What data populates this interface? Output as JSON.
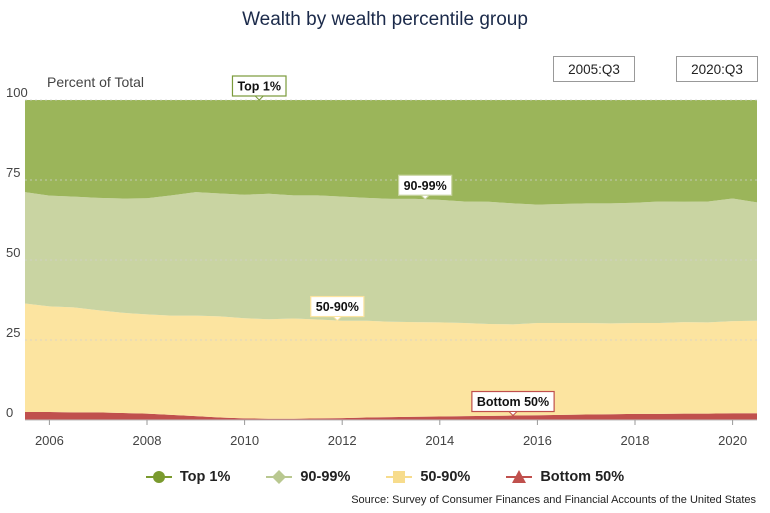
{
  "chart_data": {
    "type": "area",
    "stacked": true,
    "title": "Wealth by wealth percentile group",
    "ylabel": "Percent of Total",
    "xlabel": "",
    "ylim": [
      0,
      100
    ],
    "xlim": [
      2005.5,
      2020.5
    ],
    "yticks": [
      0,
      25,
      50,
      75,
      100
    ],
    "xticks": [
      2006,
      2008,
      2010,
      2012,
      2014,
      2016,
      2018,
      2020
    ],
    "grid": "horizontal",
    "legend_position": "bottom",
    "range_selector": {
      "start": "2005:Q3",
      "end": "2020:Q3"
    },
    "x": [
      2005.5,
      2006.0,
      2006.5,
      2007.0,
      2007.5,
      2008.0,
      2008.5,
      2009.0,
      2009.5,
      2010.0,
      2010.5,
      2011.0,
      2011.5,
      2012.0,
      2012.5,
      2013.0,
      2013.5,
      2014.0,
      2014.5,
      2015.0,
      2015.5,
      2016.0,
      2016.5,
      2017.0,
      2017.5,
      2018.0,
      2018.5,
      2019.0,
      2019.5,
      2020.0,
      2020.5
    ],
    "series": [
      {
        "name": "Bottom 50%",
        "color": "#c0504d",
        "marker": "triangle",
        "values": [
          2.5,
          2.5,
          2.4,
          2.4,
          2.2,
          2.0,
          1.6,
          1.2,
          0.8,
          0.5,
          0.4,
          0.4,
          0.5,
          0.6,
          0.8,
          0.9,
          1.0,
          1.1,
          1.2,
          1.3,
          1.4,
          1.5,
          1.6,
          1.7,
          1.8,
          1.9,
          1.9,
          2.0,
          2.0,
          2.1,
          2.1
        ]
      },
      {
        "name": "50-90%",
        "color": "#fce4a0",
        "marker": "square",
        "values": [
          33.9,
          33.0,
          32.8,
          31.9,
          31.3,
          31.0,
          31.0,
          31.4,
          31.6,
          31.3,
          31.1,
          31.3,
          30.9,
          30.4,
          30.2,
          29.8,
          29.6,
          29.4,
          29.1,
          28.7,
          28.5,
          28.8,
          28.7,
          28.6,
          28.4,
          28.4,
          28.4,
          28.6,
          28.5,
          28.8,
          28.9
        ]
      },
      {
        "name": "90-99%",
        "color": "#c9d4a2",
        "marker": "diamond",
        "values": [
          34.8,
          34.6,
          34.6,
          35.1,
          35.7,
          36.3,
          37.6,
          38.6,
          38.4,
          38.6,
          39.2,
          38.5,
          38.8,
          38.8,
          38.4,
          38.4,
          38.5,
          38.3,
          38.0,
          38.2,
          37.8,
          37.0,
          37.2,
          37.4,
          37.5,
          37.6,
          38.0,
          37.6,
          37.8,
          38.3,
          37.0
        ]
      },
      {
        "name": "Top 1%",
        "color": "#9bb55a",
        "marker": "circle",
        "values": [
          28.8,
          29.9,
          30.2,
          30.6,
          30.8,
          30.7,
          29.8,
          28.8,
          29.2,
          29.6,
          29.3,
          29.8,
          29.8,
          30.2,
          30.6,
          30.9,
          30.9,
          31.2,
          31.7,
          31.8,
          32.3,
          32.7,
          32.5,
          32.3,
          32.3,
          32.1,
          31.7,
          31.8,
          31.7,
          30.8,
          32.0
        ]
      }
    ],
    "callouts": [
      {
        "series": "Top 1%",
        "label": "Top 1%",
        "x": 2010.3,
        "border": "#7a9a3a"
      },
      {
        "series": "90-99%",
        "label": "90-99%",
        "x": 2013.7,
        "border": "#c9d4a2"
      },
      {
        "series": "50-90%",
        "label": "50-90%",
        "x": 2011.9,
        "border": "#fce4a0"
      },
      {
        "series": "Bottom 50%",
        "label": "Bottom 50%",
        "x": 2015.5,
        "border": "#c0504d"
      }
    ]
  },
  "legend": {
    "items": [
      {
        "label": "Top 1%",
        "color": "#7a9a2e",
        "marker": "circle"
      },
      {
        "label": "90-99%",
        "color": "#b9c890",
        "marker": "diamond"
      },
      {
        "label": "50-90%",
        "color": "#f7dc8c",
        "marker": "square"
      },
      {
        "label": "Bottom 50%",
        "color": "#c0504d",
        "marker": "triangle"
      }
    ]
  },
  "source": "Source: Survey of Consumer Finances and Financial Accounts of the United States"
}
